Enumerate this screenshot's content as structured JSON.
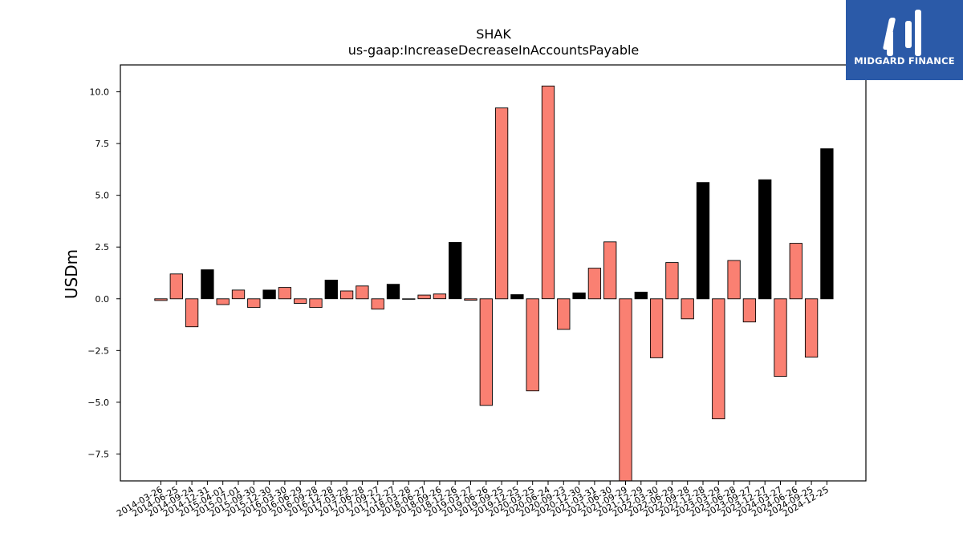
{
  "chart_data": {
    "type": "bar",
    "title": "SHAK",
    "subtitle": "us-gaap:IncreaseDecreaseInAccountsPayable",
    "xlabel": "",
    "ylabel": "USDm",
    "ylim": [
      -8.8,
      11.3
    ],
    "yticks": [
      -7.5,
      -5.0,
      -2.5,
      0.0,
      2.5,
      5.0,
      7.5,
      10.0
    ],
    "ytick_labels": [
      "−7.5",
      "−5.0",
      "−2.5",
      "0.0",
      "2.5",
      "5.0",
      "7.5",
      "10.0"
    ],
    "grid": false,
    "colors": {
      "salmon": "#fa8072",
      "black": "#000000"
    },
    "categories": [
      "2014-03-26",
      "2014-06-25",
      "2014-09-24",
      "2014-12-31",
      "2015-04-01",
      "2015-07-01",
      "2015-09-30",
      "2015-12-30",
      "2016-03-30",
      "2016-06-29",
      "2016-09-28",
      "2016-12-28",
      "2017-03-29",
      "2017-06-28",
      "2017-09-27",
      "2017-12-27",
      "2018-03-28",
      "2018-06-27",
      "2018-09-26",
      "2018-12-26",
      "2019-03-27",
      "2019-06-26",
      "2019-09-25",
      "2019-12-25",
      "2020-03-25",
      "2020-06-24",
      "2020-09-23",
      "2020-12-30",
      "2021-03-31",
      "2021-06-30",
      "2021-09-29",
      "2021-12-29",
      "2022-03-30",
      "2022-06-29",
      "2022-09-28",
      "2022-12-28",
      "2023-03-29",
      "2023-06-28",
      "2023-09-27",
      "2023-12-27",
      "2024-03-27",
      "2024-06-26",
      "2024-09-25",
      "2024-12-25"
    ],
    "values": [
      -0.08,
      1.2,
      -1.35,
      1.4,
      -0.28,
      0.42,
      -0.42,
      0.42,
      0.55,
      -0.22,
      -0.42,
      0.9,
      0.38,
      0.62,
      -0.5,
      0.7,
      0.0,
      0.18,
      0.23,
      2.72,
      -0.07,
      -5.15,
      9.22,
      0.2,
      -4.45,
      10.28,
      -1.48,
      0.28,
      1.48,
      2.75,
      -8.8,
      0.32,
      -2.85,
      1.75,
      -0.97,
      5.62,
      -5.8,
      1.85,
      -1.12,
      5.75,
      -3.75,
      2.68,
      -2.82,
      7.25
    ],
    "bar_colors": [
      "salmon",
      "salmon",
      "salmon",
      "black",
      "salmon",
      "salmon",
      "salmon",
      "black",
      "salmon",
      "salmon",
      "salmon",
      "black",
      "salmon",
      "salmon",
      "salmon",
      "black",
      "salmon",
      "salmon",
      "salmon",
      "black",
      "salmon",
      "salmon",
      "salmon",
      "black",
      "salmon",
      "salmon",
      "salmon",
      "black",
      "salmon",
      "salmon",
      "salmon",
      "black",
      "salmon",
      "salmon",
      "salmon",
      "black",
      "salmon",
      "salmon",
      "salmon",
      "black",
      "salmon",
      "salmon",
      "salmon",
      "black"
    ]
  },
  "logo": {
    "text": "MIDGARD FINANCE",
    "icon": "midgard-m-icon",
    "background": "#2b5aa8"
  }
}
